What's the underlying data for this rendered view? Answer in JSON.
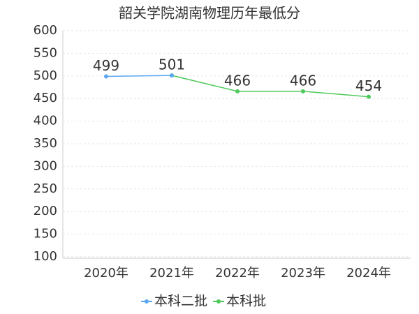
{
  "chart_data": {
    "type": "line",
    "title": "韶关学院湖南物理历年最低分",
    "categories": [
      "2020年",
      "2021年",
      "2022年",
      "2023年",
      "2024年"
    ],
    "series": [
      {
        "name": "本科二批",
        "color": "#5aa7f2",
        "values": [
          499,
          501,
          null,
          null,
          null
        ]
      },
      {
        "name": "本科批",
        "color": "#4ec95a",
        "values": [
          null,
          501,
          466,
          466,
          454
        ]
      }
    ],
    "ylim": [
      100,
      600
    ],
    "yticks": [
      100,
      150,
      200,
      250,
      300,
      350,
      400,
      450,
      500,
      550,
      600
    ],
    "grid": true,
    "legend": "bottom"
  }
}
